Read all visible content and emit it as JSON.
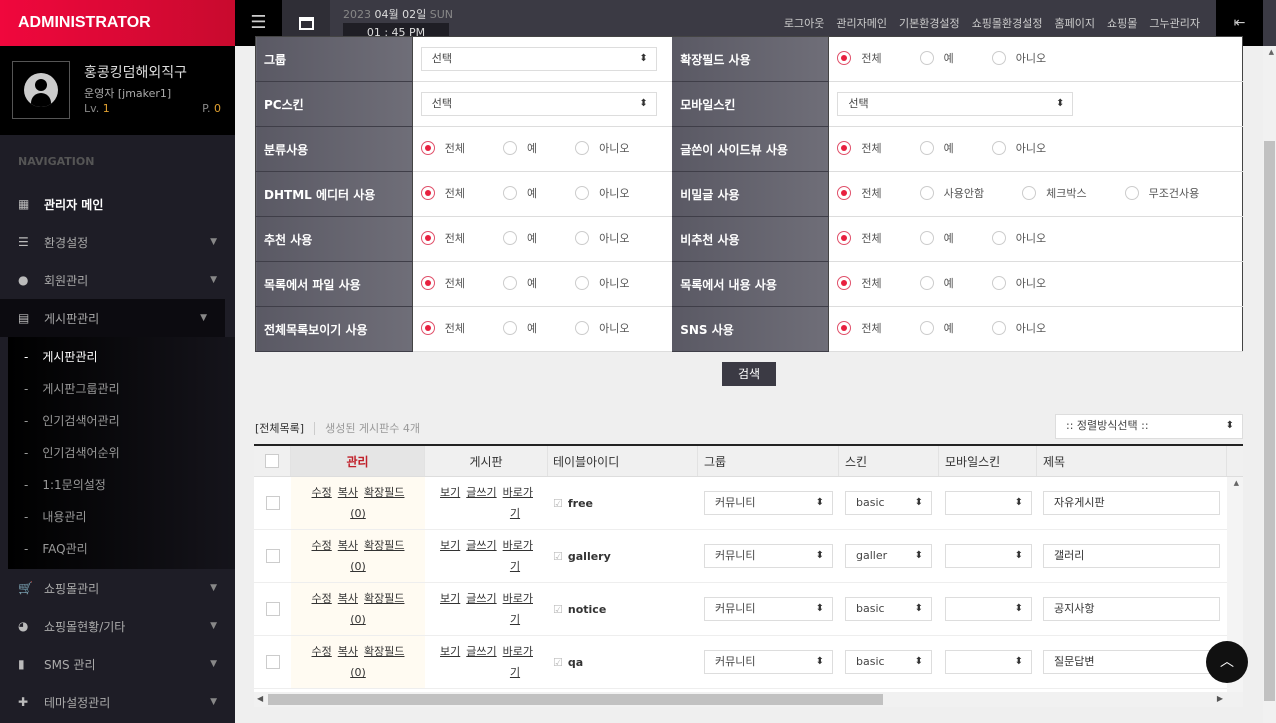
{
  "brand": "ADMINISTRATOR",
  "profile": {
    "name": "홍콩킹덤해외직구",
    "role": "운영자 [jmaker1]",
    "lv_label": "Lv.",
    "lv": "1",
    "p_label": "P.",
    "p": "0"
  },
  "nav": {
    "heading": "NAVIGATION",
    "items": [
      {
        "label": "관리자 메인",
        "icon": "dashboard-icon",
        "glyph": "▦"
      },
      {
        "label": "환경설정",
        "icon": "sliders-icon",
        "glyph": "☰"
      },
      {
        "label": "회원관리",
        "icon": "user-icon",
        "glyph": "●"
      },
      {
        "label": "게시판관리",
        "icon": "list-icon",
        "glyph": "▤"
      }
    ],
    "sub": [
      "게시판관리",
      "게시판그룹관리",
      "인기검색어관리",
      "인기검색어순위",
      "1:1문의설정",
      "내용관리",
      "FAQ관리"
    ],
    "items2": [
      {
        "label": "쇼핑몰관리",
        "icon": "cart-icon",
        "glyph": "🛒"
      },
      {
        "label": "쇼핑몰현황/기타",
        "icon": "pie-chart-icon",
        "glyph": "◕"
      },
      {
        "label": "SMS 관리",
        "icon": "mobile-icon",
        "glyph": "▮"
      },
      {
        "label": "테마설정관리",
        "icon": "puzzle-icon",
        "glyph": "✚"
      }
    ]
  },
  "topbar": {
    "year": "2023",
    "month": "04월",
    "day": "02일",
    "weekday": "SUN",
    "time": "01 : 45 PM",
    "links": [
      "로그아웃",
      "관리자메인",
      "기본환경설정",
      "쇼핑몰환경설정",
      "홈페이지",
      "쇼핑몰",
      "그누관리자"
    ]
  },
  "search": {
    "rows": [
      [
        {
          "label": "그룹",
          "select": "선택"
        },
        {
          "label": "확장필드 사용",
          "radios": [
            "전체",
            "예",
            "아니오"
          ]
        }
      ],
      [
        {
          "label": "PC스킨",
          "select": "선택"
        },
        {
          "label": "모바일스킨",
          "select": "선택"
        }
      ],
      [
        {
          "label": "분류사용",
          "radios": [
            "전체",
            "예",
            "아니오"
          ]
        },
        {
          "label": "글쓴이 사이드뷰 사용",
          "radios": [
            "전체",
            "예",
            "아니오"
          ]
        }
      ],
      [
        {
          "label": "DHTML 에디터 사용",
          "radios": [
            "전체",
            "예",
            "아니오"
          ]
        },
        {
          "label": "비밀글 사용",
          "radios": [
            "전체",
            "사용안함",
            "체크박스",
            "무조건사용"
          ]
        }
      ],
      [
        {
          "label": "추천 사용",
          "radios": [
            "전체",
            "예",
            "아니오"
          ]
        },
        {
          "label": "비추천 사용",
          "radios": [
            "전체",
            "예",
            "아니오"
          ]
        }
      ],
      [
        {
          "label": "목록에서 파일 사용",
          "radios": [
            "전체",
            "예",
            "아니오"
          ]
        },
        {
          "label": "목록에서 내용 사용",
          "radios": [
            "전체",
            "예",
            "아니오"
          ]
        }
      ],
      [
        {
          "label": "전체목록보이기 사용",
          "radios": [
            "전체",
            "예",
            "아니오"
          ]
        },
        {
          "label": "SNS 사용",
          "radios": [
            "전체",
            "예",
            "아니오"
          ]
        }
      ]
    ],
    "button": "검색"
  },
  "list": {
    "all_label": "[전체목록]",
    "count_text": "생성된 게시판수 4개",
    "sort_placeholder": ":: 정렬방식선택 ::",
    "columns": [
      "관리",
      "게시판",
      "테이블아이디",
      "그룹",
      "스킨",
      "모바일스킨",
      "제목"
    ],
    "manage_links": [
      "수정",
      "복사",
      "확장필드",
      "(0)"
    ],
    "board_links": [
      "보기",
      "글쓰기",
      "바로가",
      "기"
    ],
    "rows": [
      {
        "id": "free",
        "group": "커뮤니티",
        "skin": "basic",
        "mobile_skin": "",
        "title": "자유게시판"
      },
      {
        "id": "gallery",
        "group": "커뮤니티",
        "skin": "galler",
        "mobile_skin": "",
        "title": "갤러리"
      },
      {
        "id": "notice",
        "group": "커뮤니티",
        "skin": "basic",
        "mobile_skin": "",
        "title": "공지사항"
      },
      {
        "id": "qa",
        "group": "커뮤니티",
        "skin": "basic",
        "mobile_skin": "",
        "title": "질문답변"
      }
    ]
  },
  "colors": {
    "brand": "#f0073d",
    "radio_active": "#e8203f",
    "sidebar": "#1e1d26",
    "topbar": "#3b3a44"
  }
}
